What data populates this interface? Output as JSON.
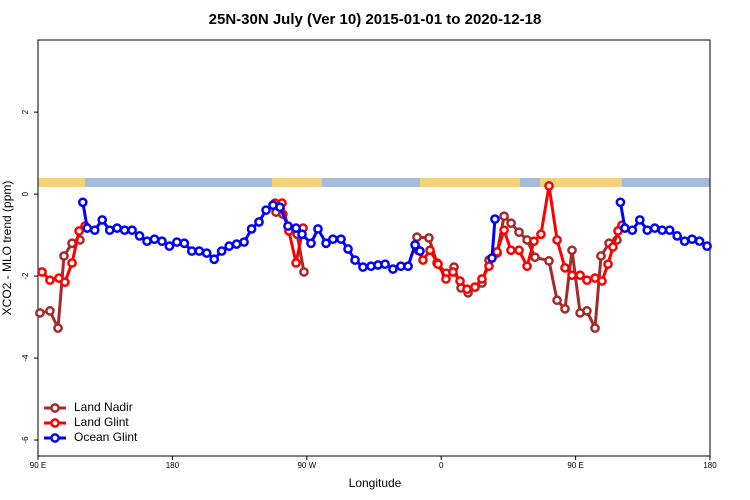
{
  "chart_data": {
    "type": "line",
    "title": "25N-30N July (Ver 10)   2015-01-01 to 2020-12-18",
    "x_label": "Longitude",
    "y_label": "XCO2 - MLO trend (ppm)",
    "xlim": [
      90,
      540
    ],
    "ylim": [
      -6.39,
      3.76
    ],
    "xticks": [
      {
        "value": 90,
        "label": "90 E"
      },
      180,
      {
        "value": 270,
        "label": "90 W"
      },
      {
        "value": 360,
        "label": "0"
      },
      {
        "value": 450,
        "label": "90 E"
      },
      {
        "value": 540,
        "label": "180"
      }
    ],
    "yticks": [
      -6,
      -4,
      -2,
      0,
      2
    ],
    "legend": "bottom-left",
    "series": [
      {
        "name": "Land Nadir",
        "color": "#a52a2a",
        "x": [
          91.3,
          98,
          103.4,
          107.4,
          112.8,
          118.1,
          null,
          249.4,
          254,
          258.8,
          263.5,
          268.1,
          null,
          343.8,
          351.8,
          357.2,
          363.2,
          368.6,
          373.3,
          378,
          382.6,
          387.3,
          392,
          397.4,
          402.1,
          406.8,
          412.1,
          417.5,
          422.8,
          432.2,
          437.6,
          442.9,
          447.6,
          453,
          457.6,
          463,
          467,
          472.4,
          477.7
        ],
        "values": [
          -2.9,
          -2.85,
          -3.27,
          -1.51,
          -1.2,
          -1.12,
          null,
          -0.44,
          -0.49,
          -0.85,
          -0.98,
          -1.9,
          null,
          -1.05,
          -1.07,
          -1.68,
          -1.93,
          -1.78,
          -2.29,
          -2.41,
          -2.27,
          -2.17,
          -1.61,
          -1.44,
          -0.54,
          -0.71,
          -0.93,
          -1.12,
          -1.54,
          -1.63,
          -2.59,
          -2.8,
          -1.37,
          -2.9,
          -2.85,
          -3.27,
          -1.51,
          -1.2,
          -1.12
        ]
      },
      {
        "name": "Land Glint",
        "color": "#ff0000",
        "x": [
          92.7,
          98,
          104,
          108,
          112.8,
          117.5,
          121.5,
          null,
          248.7,
          253.4,
          258,
          262.8,
          267.5,
          null,
          344.5,
          347.8,
          352.5,
          357.9,
          363.2,
          367.9,
          372.6,
          377.3,
          382.6,
          387.3,
          392,
          397.4,
          402.1,
          406.7,
          412.1,
          417.5,
          422.1,
          426.8,
          432.2,
          437.6,
          442.9,
          447.6,
          453,
          457.6,
          463,
          467.7,
          471.7,
          475,
          478.4,
          481
        ],
        "values": [
          -1.9,
          -2.1,
          -2.05,
          -2.15,
          -1.68,
          -0.9,
          -0.78,
          null,
          -0.22,
          -0.22,
          -0.9,
          -1.68,
          -0.83,
          null,
          -1.37,
          -1.61,
          -1.37,
          -1.71,
          -2.07,
          -1.9,
          -2.12,
          -2.32,
          -2.27,
          -2.07,
          -1.76,
          -1.41,
          -0.88,
          -1.37,
          -1.37,
          -1.76,
          -1.15,
          -0.98,
          0.2,
          -1.12,
          -1.8,
          -1.98,
          -1.98,
          -2.1,
          -2.05,
          -2.12,
          -1.71,
          -1.29,
          -0.9,
          -0.76
        ]
      },
      {
        "name": "Ocean Glint",
        "color": "#0000ff",
        "x": [
          120,
          123,
          128,
          133,
          138,
          143,
          148,
          153,
          158,
          163,
          168,
          173,
          178,
          183,
          188,
          193,
          198,
          203,
          208,
          213,
          218,
          223,
          228,
          233,
          238,
          242.7,
          247.4,
          252,
          257.4,
          262.8,
          266.8,
          272.8,
          277.5,
          282.9,
          287.5,
          292.9,
          297.6,
          302.3,
          307.6,
          313,
          317.7,
          322.4,
          327.7,
          333,
          337.8,
          342.5,
          345.8,
          null,
          394,
          396,
          null,
          480,
          483,
          488,
          493,
          498,
          503,
          508,
          513,
          518,
          523,
          528,
          533,
          538
        ],
        "values": [
          -0.2,
          -0.83,
          -0.88,
          -0.63,
          -0.88,
          -0.83,
          -0.88,
          -0.88,
          -1.02,
          -1.15,
          -1.1,
          -1.15,
          -1.27,
          -1.17,
          -1.2,
          -1.39,
          -1.39,
          -1.44,
          -1.59,
          -1.39,
          -1.27,
          -1.22,
          -1.17,
          -0.85,
          -0.68,
          -0.39,
          -0.27,
          -0.32,
          -0.78,
          -0.83,
          -0.98,
          -1.2,
          -0.85,
          -1.2,
          -1.1,
          -1.1,
          -1.34,
          -1.61,
          -1.78,
          -1.76,
          -1.73,
          -1.71,
          -1.83,
          -1.76,
          -1.76,
          -1.24,
          -1.39,
          null,
          -1.56,
          -0.61,
          null,
          -0.2,
          -0.83,
          -0.88,
          -0.63,
          -0.88,
          -0.83,
          -0.88,
          -0.88,
          -1.02,
          -1.15,
          -1.1,
          -1.15,
          -1.27
        ]
      }
    ]
  }
}
